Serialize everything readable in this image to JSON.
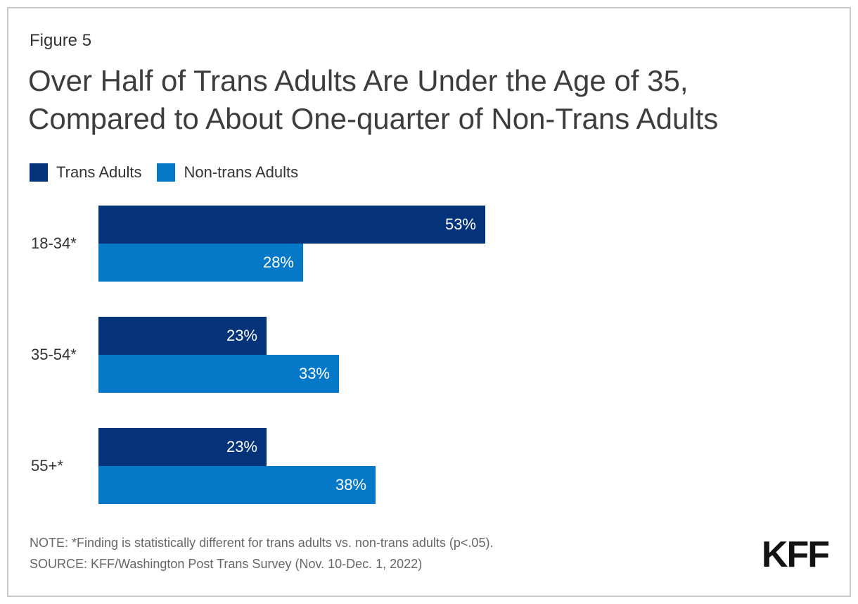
{
  "header": {
    "figure_label": "Figure 5"
  },
  "colors": {
    "trans_adults": "#04337A",
    "non_trans_adults": "#0678C8",
    "title_text": "#3d3d3d",
    "note_text": "#666666",
    "logo_text": "#141414"
  },
  "legend": {
    "items": [
      {
        "label": "Trans Adults"
      },
      {
        "label": "Non-trans Adults"
      }
    ]
  },
  "chart_data": {
    "type": "bar",
    "orientation": "horizontal",
    "title": "Over Half of Trans Adults Are Under the Age of 35, Compared to About One-quarter of Non-Trans Adults",
    "categories": [
      "18-34*",
      "35-54*",
      "55+*"
    ],
    "series": [
      {
        "name": "Trans Adults",
        "values": [
          53,
          23,
          23
        ]
      },
      {
        "name": "Non-trans Adults",
        "values": [
          28,
          33,
          38
        ]
      }
    ],
    "value_suffix": "%",
    "xlabel": "",
    "ylabel": "",
    "xlim": [
      0,
      57
    ],
    "grid": false,
    "legend_position": "top-left",
    "value_labels": "inside-end-white"
  },
  "footer": {
    "note": "NOTE: *Finding is statistically different for trans adults vs. non-trans adults (p<.05).",
    "source": "SOURCE: KFF/Washington Post Trans Survey (Nov. 10-Dec. 1, 2022)",
    "logo": "KFF"
  }
}
